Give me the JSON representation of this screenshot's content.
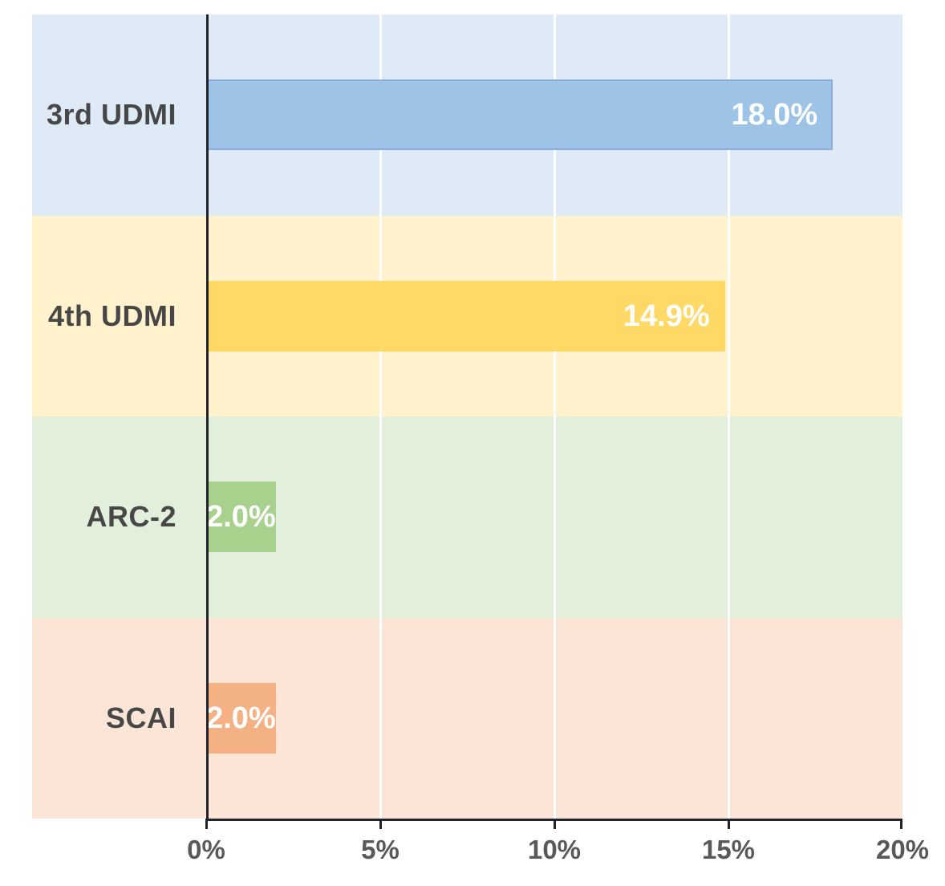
{
  "chart_data": {
    "type": "bar",
    "orientation": "horizontal",
    "title": "",
    "xlabel": "",
    "ylabel": "",
    "categories": [
      "3rd UDMI",
      "4th UDMI",
      "ARC-2",
      "SCAI"
    ],
    "values": [
      18.0,
      14.9,
      2.0,
      2.0
    ],
    "value_labels": [
      "18.0%",
      "14.9%",
      "2.0%",
      "2.0%"
    ],
    "x_ticks": [
      "0%",
      "5%",
      "10%",
      "15%",
      "20%"
    ],
    "x_tick_values": [
      0,
      5,
      10,
      15,
      20
    ],
    "xlim": [
      0,
      20
    ],
    "grid": true,
    "legend": false,
    "colors": {
      "bar_fills": [
        "#9DC3E6",
        "#FFD966",
        "#A9D18E",
        "#F4B183"
      ],
      "bar_borders": [
        "#8FAADC",
        "#FFD966",
        "#A9D18E",
        "#F4B183"
      ],
      "band_fills": [
        "#DEEBF7",
        "#FFF2CC",
        "#E2EFDA",
        "#FBE5D6"
      ],
      "gridline": "#FFFFFF",
      "axis": "#20222C",
      "category_label": "#474747",
      "tick_label": "#595959",
      "value_label": "#FFFFFF"
    }
  }
}
